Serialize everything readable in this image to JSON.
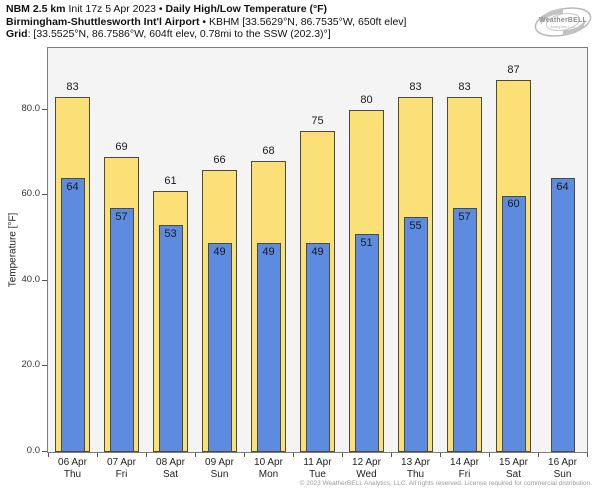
{
  "header": {
    "line1_bold1": "NBM 2.5 km",
    "line1_mid": " Init 17z 5 Apr 2023 • ",
    "line1_bold2": "Daily High/Low Temperature (°F)",
    "line2_bold": "Birmingham-Shuttlesworth Int'l Airport",
    "line2_rest": " • KBHM [33.5629°N, 86.7535°W, 650ft elev]",
    "line3_bold": "Grid",
    "line3_rest": ": [33.5525°N, 86.7586°W, 604ft elev, 0.78mi to the SSW (202.3)°]"
  },
  "logo": {
    "brand": "WeatherBELL",
    "sub": "Analytics LLC"
  },
  "chart_data": {
    "type": "bar",
    "title": "Daily High/Low Temperature (°F)",
    "ylabel": "Temperature [°F]",
    "xlabel": "",
    "ylim": [
      0,
      94.5
    ],
    "grid": false,
    "legend": "none",
    "yticks": [
      0,
      20,
      40,
      60,
      80
    ],
    "ytick_labels": [
      "0.0",
      "20.0",
      "40.0",
      "60.0",
      "80.0"
    ],
    "categories": [
      {
        "date": "06 Apr",
        "day": "Thu"
      },
      {
        "date": "07 Apr",
        "day": "Fri"
      },
      {
        "date": "08 Apr",
        "day": "Sat"
      },
      {
        "date": "09 Apr",
        "day": "Sun"
      },
      {
        "date": "10 Apr",
        "day": "Mon"
      },
      {
        "date": "11 Apr",
        "day": "Tue"
      },
      {
        "date": "12 Apr",
        "day": "Wed"
      },
      {
        "date": "13 Apr",
        "day": "Thu"
      },
      {
        "date": "14 Apr",
        "day": "Fri"
      },
      {
        "date": "15 Apr",
        "day": "Sat"
      },
      {
        "date": "16 Apr",
        "day": "Sun"
      }
    ],
    "series": [
      {
        "name": "High",
        "values": [
          83,
          69,
          61,
          66,
          68,
          75,
          80,
          83,
          83,
          87,
          null
        ]
      },
      {
        "name": "Low",
        "values": [
          64,
          57,
          53,
          49,
          49,
          49,
          51,
          55,
          57,
          60,
          64
        ]
      }
    ],
    "colors": {
      "high_fill": "#FBDF77",
      "low_fill": "#5D8BE0",
      "bar_border": "#4a4a40",
      "plot_bg": "#f4f4f4",
      "page_bg": "#ffffff",
      "label_text": "#1a1a1a"
    }
  },
  "footer": {
    "copyright": "© 2023 WeatherBELL Analytics, LLC. All rights reserved. License required for commercial distribution."
  }
}
